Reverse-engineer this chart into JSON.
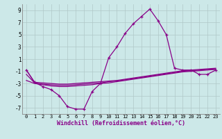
{
  "xlabel": "Windchill (Refroidissement éolien,°C)",
  "hours": [
    0,
    1,
    2,
    3,
    4,
    5,
    6,
    7,
    8,
    9,
    10,
    11,
    12,
    13,
    14,
    15,
    16,
    17,
    18,
    19,
    20,
    21,
    22,
    23
  ],
  "temp": [
    -0.8,
    -2.8,
    -3.5,
    -4.0,
    -5.0,
    -6.8,
    -7.2,
    -7.2,
    -4.3,
    -3.0,
    1.2,
    3.0,
    5.2,
    6.8,
    8.0,
    9.2,
    7.3,
    5.0,
    -0.5,
    -0.8,
    -0.8,
    -1.5,
    -1.5,
    -0.8
  ],
  "feels_like1": [
    -0.8,
    -2.8,
    -2.9,
    -3.0,
    -3.1,
    -3.1,
    -3.0,
    -2.9,
    -2.8,
    -2.7,
    -2.6,
    -2.5,
    -2.3,
    -2.1,
    -1.9,
    -1.7,
    -1.5,
    -1.3,
    -1.1,
    -0.9,
    -0.8,
    -0.7,
    -0.6,
    -0.5
  ],
  "feels_like2": [
    -1.5,
    -2.9,
    -3.1,
    -3.2,
    -3.3,
    -3.3,
    -3.2,
    -3.1,
    -3.0,
    -2.9,
    -2.7,
    -2.6,
    -2.4,
    -2.2,
    -2.0,
    -1.8,
    -1.6,
    -1.4,
    -1.2,
    -1.0,
    -0.9,
    -0.8,
    -0.7,
    -0.6
  ],
  "feels_like3": [
    -2.5,
    -3.0,
    -3.2,
    -3.4,
    -3.5,
    -3.5,
    -3.4,
    -3.3,
    -3.2,
    -3.0,
    -2.9,
    -2.7,
    -2.5,
    -2.3,
    -2.1,
    -1.9,
    -1.7,
    -1.5,
    -1.3,
    -1.1,
    -1.0,
    -0.9,
    -0.8,
    -0.7
  ],
  "line_color": "#880088",
  "bg_color": "#cce8e8",
  "grid_color": "#b0c8c8",
  "ylim": [
    -8,
    10
  ],
  "yticks": [
    -7,
    -5,
    -3,
    -1,
    1,
    3,
    5,
    7,
    9
  ],
  "xlim": [
    -0.5,
    23.5
  ]
}
